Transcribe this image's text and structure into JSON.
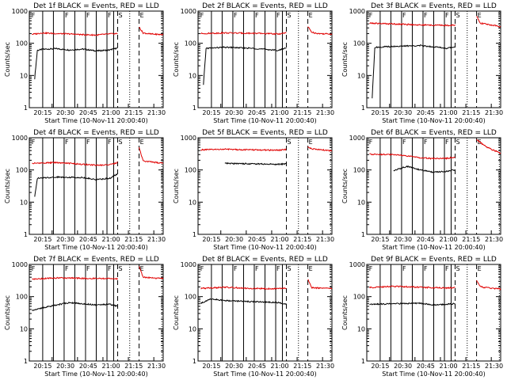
{
  "chart_data": [
    {
      "type": "line",
      "title": "Det 1f BLACK = Events, RED = LLD",
      "ylabel": "Counts/sec",
      "xlabel": "Start Time (10-Nov-11 20:00:40)",
      "x_ticks": [
        "20:15",
        "20:30",
        "20:45",
        "21:00",
        "21:15",
        "21:30"
      ],
      "y_ticks": [
        "1",
        "10",
        "100",
        "1000"
      ],
      "ylim": [
        1,
        1000
      ],
      "ylog": true,
      "markers": [
        "F",
        "F",
        "F",
        "F",
        "S",
        "E"
      ],
      "series": [
        {
          "color": "#000000",
          "break_after": [
            [
              0.04,
              8
            ],
            [
              0.06,
              60
            ],
            [
              0.1,
              65
            ],
            [
              0.2,
              68
            ],
            [
              0.3,
              62
            ],
            [
              0.4,
              66
            ],
            [
              0.5,
              58
            ],
            [
              0.6,
              62
            ],
            [
              0.66,
              72
            ]
          ]
        },
        {
          "color": "#e00000",
          "pre": [
            [
              0.02,
              190
            ],
            [
              0.1,
              210
            ],
            [
              0.2,
              200
            ],
            [
              0.3,
              195
            ],
            [
              0.4,
              185
            ],
            [
              0.5,
              180
            ],
            [
              0.6,
              195
            ],
            [
              0.66,
              200
            ]
          ],
          "post": [
            [
              0.82,
              320
            ],
            [
              0.85,
              210
            ],
            [
              0.9,
              195
            ],
            [
              1.0,
              185
            ]
          ]
        }
      ]
    },
    {
      "type": "line",
      "title": "Det 2f BLACK = Events, RED = LLD",
      "ylabel": "Counts/sec",
      "xlabel": "Start Time (10-Nov-11 20:00:40)",
      "x_ticks": [
        "20:15",
        "20:30",
        "20:45",
        "21:00",
        "21:15",
        "21:30"
      ],
      "y_ticks": [
        "1",
        "10",
        "100",
        "1000"
      ],
      "ylim": [
        1,
        1000
      ],
      "ylog": true,
      "markers": [
        "F",
        "F",
        "F",
        "F",
        "S",
        "E"
      ],
      "series": [
        {
          "color": "#000000",
          "break_after": [
            [
              0.04,
              5
            ],
            [
              0.06,
              70
            ],
            [
              0.2,
              75
            ],
            [
              0.4,
              70
            ],
            [
              0.5,
              65
            ],
            [
              0.6,
              60
            ],
            [
              0.66,
              72
            ]
          ]
        },
        {
          "color": "#e00000",
          "pre": [
            [
              0.02,
              200
            ],
            [
              0.2,
              210
            ],
            [
              0.4,
              205
            ],
            [
              0.6,
              195
            ],
            [
              0.66,
              210
            ]
          ],
          "post": [
            [
              0.82,
              330
            ],
            [
              0.85,
              220
            ],
            [
              0.9,
              200
            ],
            [
              1.0,
              195
            ]
          ]
        }
      ]
    },
    {
      "type": "line",
      "title": "Det 3f BLACK = Events, RED = LLD",
      "ylabel": "Counts/sec",
      "xlabel": "Start Time (10-Nov-11 20:00:40)",
      "x_ticks": [
        "20:15",
        "20:30",
        "20:45",
        "21:00",
        "21:15",
        "21:30"
      ],
      "y_ticks": [
        "1",
        "10",
        "100",
        "1000"
      ],
      "ylim": [
        1,
        1000
      ],
      "ylog": true,
      "markers": [
        "F",
        "F",
        "F",
        "F",
        "S",
        "E"
      ],
      "series": [
        {
          "color": "#000000",
          "break_after": [
            [
              0.04,
              2
            ],
            [
              0.06,
              75
            ],
            [
              0.2,
              80
            ],
            [
              0.4,
              85
            ],
            [
              0.5,
              78
            ],
            [
              0.6,
              70
            ],
            [
              0.66,
              78
            ]
          ]
        },
        {
          "color": "#e00000",
          "pre": [
            [
              0.02,
              420
            ],
            [
              0.2,
              400
            ],
            [
              0.4,
              370
            ],
            [
              0.6,
              360
            ],
            [
              0.66,
              370
            ]
          ],
          "post": [
            [
              0.82,
              700
            ],
            [
              0.85,
              420
            ],
            [
              1.0,
              330
            ]
          ]
        }
      ]
    },
    {
      "type": "line",
      "title": "Det 4f BLACK = Events, RED = LLD",
      "ylabel": "Counts/sec",
      "xlabel": "Start Time (10-Nov-11 20:00:40)",
      "x_ticks": [
        "20:15",
        "20:30",
        "20:45",
        "21:00",
        "21:15",
        "21:30"
      ],
      "y_ticks": [
        "1",
        "10",
        "100",
        "1000"
      ],
      "ylim": [
        1,
        1000
      ],
      "ylog": true,
      "markers": [
        "F",
        "F",
        "F",
        "F",
        "S",
        "E"
      ],
      "series": [
        {
          "color": "#000000",
          "break_after": [
            [
              0.04,
              15
            ],
            [
              0.06,
              55
            ],
            [
              0.2,
              60
            ],
            [
              0.4,
              58
            ],
            [
              0.5,
              50
            ],
            [
              0.6,
              55
            ],
            [
              0.66,
              75
            ]
          ]
        },
        {
          "color": "#e00000",
          "pre": [
            [
              0.02,
              160
            ],
            [
              0.2,
              170
            ],
            [
              0.4,
              150
            ],
            [
              0.5,
              140
            ],
            [
              0.6,
              145
            ],
            [
              0.66,
              170
            ]
          ],
          "post": [
            [
              0.82,
              500
            ],
            [
              0.85,
              190
            ],
            [
              1.0,
              160
            ]
          ]
        }
      ]
    },
    {
      "type": "line",
      "title": "Det 5f BLACK = Events, RED = LLD",
      "ylabel": "Counts/sec",
      "xlabel": "Start Time (10-Nov-11 20:00:40)",
      "x_ticks": [
        "20:15",
        "20:30",
        "20:45",
        "21:00",
        "21:15",
        "21:30"
      ],
      "y_ticks": [
        "1",
        "10",
        "100",
        "1000"
      ],
      "ylim": [
        1,
        1000
      ],
      "ylog": true,
      "markers": [
        "S",
        "E"
      ],
      "series": [
        {
          "color": "#000000",
          "break_after": [
            [
              0.2,
              160
            ],
            [
              0.4,
              155
            ],
            [
              0.6,
              150
            ],
            [
              0.66,
              155
            ]
          ]
        },
        {
          "color": "#e00000",
          "pre": [
            [
              0.02,
              420
            ],
            [
              0.2,
              440
            ],
            [
              0.4,
              420
            ],
            [
              0.6,
              410
            ],
            [
              0.66,
              430
            ]
          ],
          "post": [
            [
              0.82,
              520
            ],
            [
              0.85,
              450
            ],
            [
              1.0,
              390
            ]
          ]
        }
      ]
    },
    {
      "type": "line",
      "title": "Det 6f BLACK = Events, RED = LLD",
      "ylabel": "Counts/sec",
      "xlabel": "Start Time (10-Nov-11 20:00:40)",
      "x_ticks": [
        "20:15",
        "20:30",
        "20:45",
        "21:00",
        "21:15",
        "21:30"
      ],
      "y_ticks": [
        "1",
        "10",
        "100",
        "1000"
      ],
      "ylim": [
        1,
        1000
      ],
      "ylog": true,
      "markers": [
        "F",
        "F",
        "F",
        "F",
        "S",
        "E"
      ],
      "series": [
        {
          "color": "#000000",
          "break_after": [
            [
              0.2,
              95
            ],
            [
              0.3,
              130
            ],
            [
              0.4,
              100
            ],
            [
              0.5,
              85
            ],
            [
              0.6,
              90
            ],
            [
              0.66,
              100
            ]
          ]
        },
        {
          "color": "#e00000",
          "pre": [
            [
              0.02,
              310
            ],
            [
              0.2,
              300
            ],
            [
              0.3,
              270
            ],
            [
              0.4,
              240
            ],
            [
              0.5,
              225
            ],
            [
              0.6,
              230
            ],
            [
              0.66,
              250
            ]
          ],
          "post": [
            [
              0.82,
              900
            ],
            [
              0.85,
              700
            ],
            [
              0.9,
              500
            ],
            [
              1.0,
              330
            ]
          ]
        }
      ]
    },
    {
      "type": "line",
      "title": "Det 7f BLACK = Events, RED = LLD",
      "ylabel": "Counts/sec",
      "xlabel": "Start Time (10-Nov-11 20:00:40)",
      "x_ticks": [
        "20:15",
        "20:30",
        "20:45",
        "21:00",
        "21:15",
        "21:30"
      ],
      "y_ticks": [
        "1",
        "10",
        "100",
        "1000"
      ],
      "ylim": [
        1,
        1000
      ],
      "ylog": true,
      "markers": [
        "F",
        "F",
        "F",
        "F",
        "S",
        "E"
      ],
      "series": [
        {
          "color": "#000000",
          "break_after": [
            [
              0.02,
              38
            ],
            [
              0.2,
              55
            ],
            [
              0.3,
              65
            ],
            [
              0.4,
              60
            ],
            [
              0.5,
              55
            ],
            [
              0.6,
              58
            ],
            [
              0.66,
              50
            ]
          ]
        },
        {
          "color": "#e00000",
          "pre": [
            [
              0.02,
              350
            ],
            [
              0.2,
              380
            ],
            [
              0.4,
              370
            ],
            [
              0.6,
              360
            ],
            [
              0.66,
              350
            ]
          ],
          "post": [
            [
              0.82,
              900
            ],
            [
              0.85,
              400
            ],
            [
              1.0,
              360
            ]
          ]
        }
      ]
    },
    {
      "type": "line",
      "title": "Det 8f BLACK = Events, RED = LLD",
      "ylabel": "Counts/sec",
      "xlabel": "Start Time (10-Nov-11 20:00:40)",
      "x_ticks": [
        "20:15",
        "20:30",
        "20:45",
        "21:00",
        "21:15",
        "21:30"
      ],
      "y_ticks": [
        "1",
        "10",
        "100",
        "1000"
      ],
      "ylim": [
        1,
        1000
      ],
      "ylog": true,
      "markers": [
        "F",
        "F",
        "F",
        "F",
        "S",
        "E"
      ],
      "series": [
        {
          "color": "#000000",
          "break_after": [
            [
              0.02,
              62
            ],
            [
              0.1,
              85
            ],
            [
              0.2,
              75
            ],
            [
              0.4,
              70
            ],
            [
              0.6,
              65
            ],
            [
              0.66,
              58
            ]
          ]
        },
        {
          "color": "#e00000",
          "pre": [
            [
              0.02,
              180
            ],
            [
              0.2,
              195
            ],
            [
              0.4,
              180
            ],
            [
              0.6,
              175
            ],
            [
              0.66,
              185
            ]
          ],
          "post": [
            [
              0.82,
              350
            ],
            [
              0.85,
              190
            ],
            [
              1.0,
              175
            ]
          ]
        }
      ]
    },
    {
      "type": "line",
      "title": "Det 9f BLACK = Events, RED = LLD",
      "ylabel": "Counts/sec",
      "xlabel": "Start Time (10-Nov-11 20:00:40)",
      "x_ticks": [
        "20:15",
        "20:30",
        "20:45",
        "21:00",
        "21:15",
        "21:30"
      ],
      "y_ticks": [
        "1",
        "10",
        "100",
        "1000"
      ],
      "ylim": [
        1,
        1000
      ],
      "ylog": true,
      "markers": [
        "F",
        "F",
        "F",
        "F",
        "S",
        "E"
      ],
      "series": [
        {
          "color": "#000000",
          "break_after": [
            [
              0.02,
              58
            ],
            [
              0.2,
              60
            ],
            [
              0.4,
              62
            ],
            [
              0.5,
              55
            ],
            [
              0.6,
              58
            ],
            [
              0.66,
              60
            ]
          ]
        },
        {
          "color": "#e00000",
          "pre": [
            [
              0.02,
              190
            ],
            [
              0.2,
              210
            ],
            [
              0.4,
              195
            ],
            [
              0.6,
              185
            ],
            [
              0.66,
              190
            ]
          ],
          "post": [
            [
              0.82,
              320
            ],
            [
              0.85,
              200
            ],
            [
              1.0,
              170
            ]
          ]
        }
      ]
    }
  ]
}
